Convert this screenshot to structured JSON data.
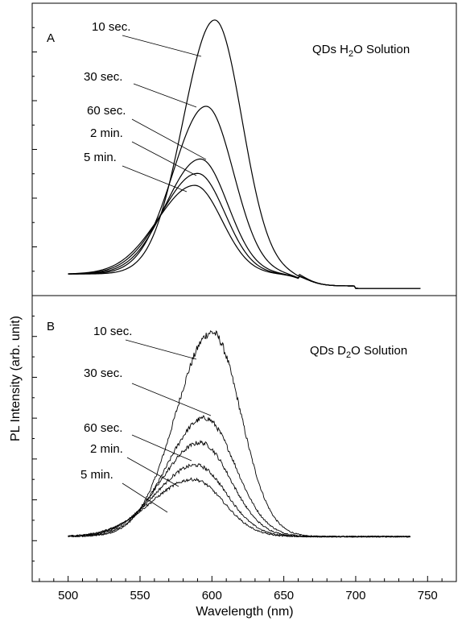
{
  "chart_data": {
    "type": "line",
    "xlabel": "Wavelength (nm)",
    "ylabel": "PL Intensity (arb. unit)",
    "xlim": [
      475,
      770
    ],
    "x_ticks": [
      "500",
      "550",
      "600",
      "650",
      "700",
      "750"
    ],
    "panels": [
      {
        "panel_label": "A",
        "annotation_parts": [
          "QDs H",
          "2",
          "O Solution"
        ],
        "ylim": [
          0,
          6.1
        ],
        "y_minor_ticks": 12,
        "noisy": false,
        "x_start": 500,
        "x_end": 745,
        "series": [
          {
            "name": "10 sec.",
            "peak_x": 602,
            "peak_y": 5.3,
            "sigma_left": 22,
            "sigma_right": 19
          },
          {
            "name": "30 sec.",
            "peak_x": 596,
            "peak_y": 3.5,
            "sigma_left": 23,
            "sigma_right": 19
          },
          {
            "name": "60 sec.",
            "peak_x": 592,
            "peak_y": 2.4,
            "sigma_left": 24,
            "sigma_right": 19
          },
          {
            "name": "2 min.",
            "peak_x": 590,
            "peak_y": 2.1,
            "sigma_left": 25,
            "sigma_right": 19
          },
          {
            "name": "5 min.",
            "peak_x": 588,
            "peak_y": 1.85,
            "sigma_left": 26,
            "sigma_right": 19
          }
        ]
      },
      {
        "panel_label": "B",
        "annotation_parts": [
          "QDs D",
          "2",
          "O Solution"
        ],
        "ylim": [
          -1.1,
          5.9
        ],
        "y_minor_ticks": 14,
        "noisy": true,
        "x_start": 500,
        "x_end": 738,
        "series": [
          {
            "name": "10 sec.",
            "peak_x": 600,
            "peak_y": 5.0,
            "sigma_left": 25,
            "sigma_right": 20
          },
          {
            "name": "30 sec.",
            "peak_x": 595,
            "peak_y": 2.9,
            "sigma_left": 26,
            "sigma_right": 21
          },
          {
            "name": "60 sec.",
            "peak_x": 592,
            "peak_y": 2.3,
            "sigma_left": 27,
            "sigma_right": 21
          },
          {
            "name": "2 min.",
            "peak_x": 589,
            "peak_y": 1.75,
            "sigma_left": 28,
            "sigma_right": 21
          },
          {
            "name": "5 min.",
            "peak_x": 587,
            "peak_y": 1.4,
            "sigma_left": 29,
            "sigma_right": 21
          }
        ]
      }
    ]
  }
}
